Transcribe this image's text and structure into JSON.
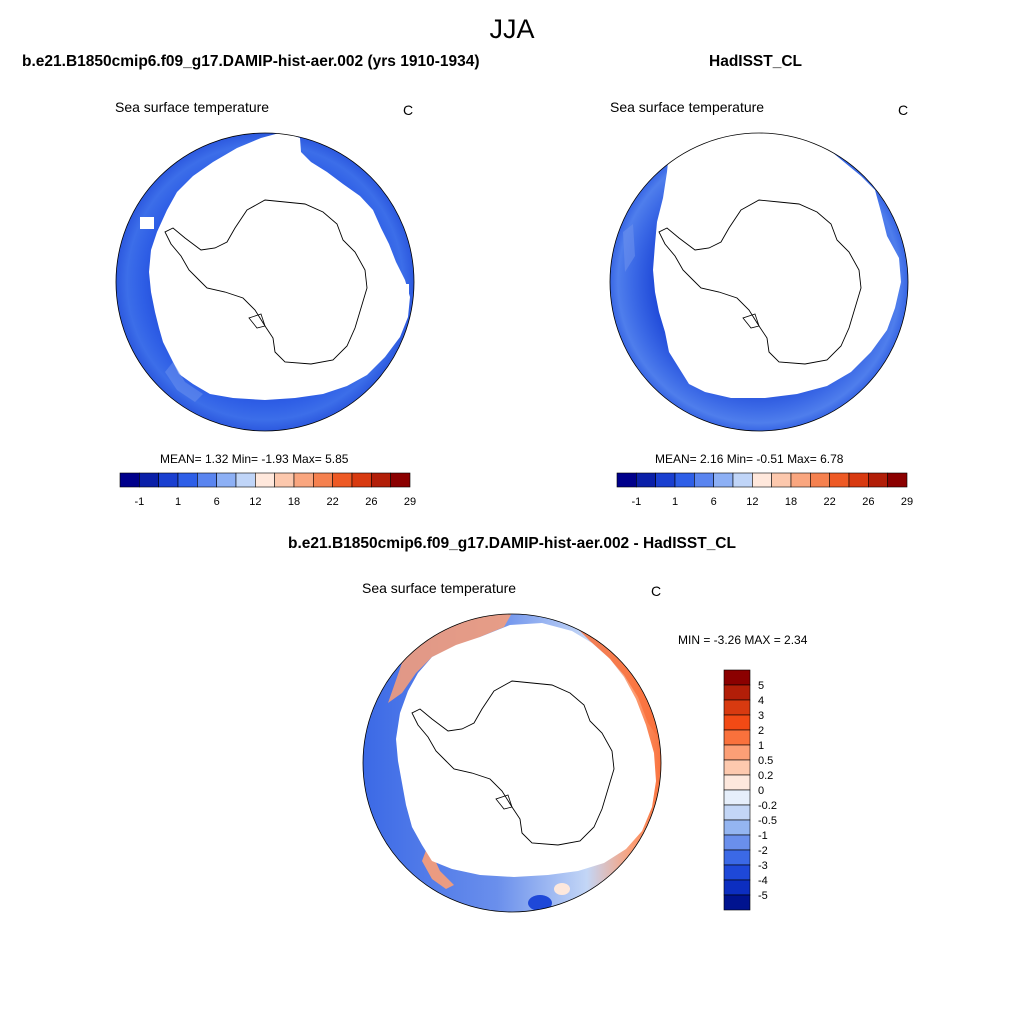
{
  "figure": {
    "season": "JJA"
  },
  "panels": {
    "model": {
      "title": "b.e21.B1850cmip6.f09_g17.DAMIP-hist-aer.002 (yrs 1910-1934)",
      "subtitle": "Sea surface temperature",
      "unit": "C",
      "stats": {
        "text": "MEAN=   1.32  Min=   -1.93  Max=    5.85"
      }
    },
    "obs": {
      "title": "HadISST_CL",
      "subtitle": "Sea surface temperature",
      "unit": "C",
      "stats": {
        "text": "MEAN=   2.16  Min=   -0.51  Max=    6.78"
      }
    },
    "diff": {
      "title": "b.e21.B1850cmip6.f09_g17.DAMIP-hist-aer.002 - HadISST_CL",
      "subtitle": "Sea surface temperature",
      "unit": "C",
      "stats": {
        "text": "MIN =  -3.26 MAX =    2.34"
      }
    }
  },
  "chart_data": [
    {
      "type": "heatmap",
      "panel": "model",
      "projection": "south polar stereographic",
      "variable": "Sea surface temperature",
      "unit": "C",
      "stats": {
        "mean": 1.32,
        "min": -1.93,
        "max": 5.85
      },
      "colorbar": {
        "orientation": "horizontal",
        "tick_labels": [
          "-1",
          "1",
          "6",
          "12",
          "18",
          "22",
          "26",
          "29"
        ],
        "colors": [
          "#00008b",
          "#0a1fa8",
          "#1a3fd0",
          "#2e5fe8",
          "#5a85f0",
          "#8db0f5",
          "#c0d5f8",
          "#ffe8dc",
          "#fcc8ad",
          "#f9a67f",
          "#f5814f",
          "#ee5a25",
          "#d83a10",
          "#b21e08",
          "#8b0000"
        ]
      }
    },
    {
      "type": "heatmap",
      "panel": "obs",
      "projection": "south polar stereographic",
      "variable": "Sea surface temperature",
      "unit": "C",
      "stats": {
        "mean": 2.16,
        "min": -0.51,
        "max": 6.78
      },
      "colorbar": {
        "orientation": "horizontal",
        "tick_labels": [
          "-1",
          "1",
          "6",
          "12",
          "18",
          "22",
          "26",
          "29"
        ],
        "colors": [
          "#00008b",
          "#0a1fa8",
          "#1a3fd0",
          "#2e5fe8",
          "#5a85f0",
          "#8db0f5",
          "#c0d5f8",
          "#ffe8dc",
          "#fcc8ad",
          "#f9a67f",
          "#f5814f",
          "#ee5a25",
          "#d83a10",
          "#b21e08",
          "#8b0000"
        ]
      }
    },
    {
      "type": "heatmap",
      "panel": "diff",
      "projection": "south polar stereographic",
      "variable": "Sea surface temperature",
      "unit": "C",
      "stats": {
        "min": -3.26,
        "max": 2.34
      },
      "colorbar": {
        "orientation": "vertical",
        "tick_labels": [
          "5",
          "4",
          "3",
          "2",
          "1",
          "0.5",
          "0.2",
          "0",
          "-0.2",
          "-0.5",
          "-1",
          "-2",
          "-3",
          "-4",
          "-5"
        ],
        "colors": [
          "#8b0000",
          "#b21e08",
          "#d83a10",
          "#f24a15",
          "#f9713c",
          "#fc9f76",
          "#fdc9ae",
          "#fde8dd",
          "#e6effb",
          "#c3d6f6",
          "#94b5f1",
          "#6a8fec",
          "#3b69e6",
          "#1e48d8",
          "#0c2ec0",
          "#00138f"
        ]
      }
    }
  ]
}
